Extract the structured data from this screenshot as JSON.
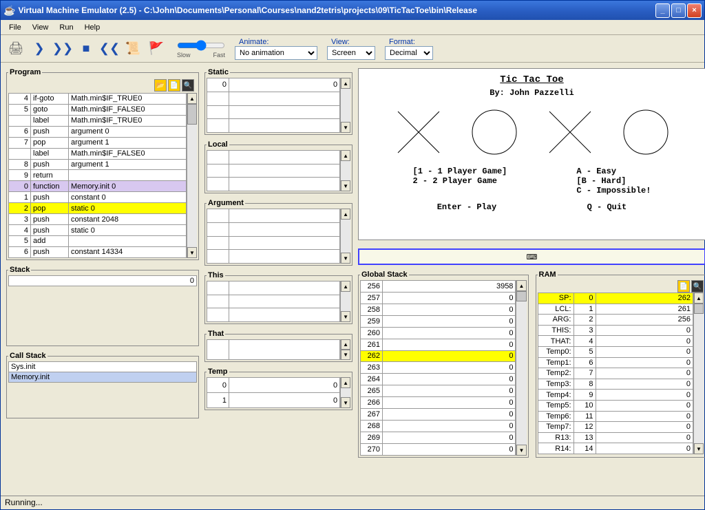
{
  "window": {
    "title": "Virtual Machine Emulator (2.5) - C:\\John\\Documents\\Personal\\Courses\\nand2tetris\\projects\\09\\TicTacToe\\bin\\Release"
  },
  "menubar": {
    "file": "File",
    "view": "View",
    "run": "Run",
    "help": "Help"
  },
  "toolbar": {
    "slow": "Slow",
    "fast": "Fast",
    "animate_label": "Animate:",
    "animate_value": "No animation",
    "view_label": "View:",
    "view_value": "Screen",
    "format_label": "Format:",
    "format_value": "Decimal"
  },
  "program": {
    "label": "Program",
    "rows": [
      {
        "n": "4",
        "cmd": "if-goto",
        "arg": "Math.min$IF_TRUE0"
      },
      {
        "n": "5",
        "cmd": "goto",
        "arg": "Math.min$IF_FALSE0"
      },
      {
        "n": "",
        "cmd": "label",
        "arg": "Math.min$IF_TRUE0"
      },
      {
        "n": "6",
        "cmd": "push",
        "arg": "argument 0"
      },
      {
        "n": "7",
        "cmd": "pop",
        "arg": "argument 1"
      },
      {
        "n": "",
        "cmd": "label",
        "arg": "Math.min$IF_FALSE0"
      },
      {
        "n": "8",
        "cmd": "push",
        "arg": "argument 1"
      },
      {
        "n": "9",
        "cmd": "return",
        "arg": ""
      },
      {
        "n": "0",
        "cmd": "function",
        "arg": "Memory.init 0",
        "hl": "purple"
      },
      {
        "n": "1",
        "cmd": "push",
        "arg": "constant 0"
      },
      {
        "n": "2",
        "cmd": "pop",
        "arg": "static 0",
        "hl": "yellow"
      },
      {
        "n": "3",
        "cmd": "push",
        "arg": "constant 2048"
      },
      {
        "n": "4",
        "cmd": "push",
        "arg": "static 0"
      },
      {
        "n": "5",
        "cmd": "add",
        "arg": ""
      },
      {
        "n": "6",
        "cmd": "push",
        "arg": "constant 14334"
      }
    ]
  },
  "stack": {
    "label": "Stack",
    "rows": [
      {
        "v": "0"
      }
    ]
  },
  "callstack": {
    "label": "Call Stack",
    "rows": [
      {
        "v": "Sys.init"
      },
      {
        "v": "Memory.init",
        "hl": "blue"
      }
    ]
  },
  "static": {
    "label": "Static",
    "rows": [
      {
        "n": "0",
        "v": "0"
      },
      {
        "n": "",
        "v": ""
      },
      {
        "n": "",
        "v": ""
      },
      {
        "n": "",
        "v": ""
      }
    ]
  },
  "local": {
    "label": "Local",
    "rows": [
      {
        "n": "",
        "v": ""
      },
      {
        "n": "",
        "v": ""
      },
      {
        "n": "",
        "v": ""
      }
    ]
  },
  "argument": {
    "label": "Argument",
    "rows": [
      {
        "n": "",
        "v": ""
      },
      {
        "n": "",
        "v": ""
      },
      {
        "n": "",
        "v": ""
      },
      {
        "n": "",
        "v": ""
      }
    ]
  },
  "this": {
    "label": "This",
    "rows": [
      {
        "n": "",
        "v": ""
      },
      {
        "n": "",
        "v": ""
      },
      {
        "n": "",
        "v": ""
      }
    ]
  },
  "that": {
    "label": "That",
    "rows": [
      {
        "n": "",
        "v": ""
      }
    ]
  },
  "temp": {
    "label": "Temp",
    "rows": [
      {
        "n": "0",
        "v": "0"
      },
      {
        "n": "1",
        "v": "0"
      }
    ]
  },
  "screen": {
    "title": "Tic Tac Toe",
    "by": "By: John Pazzelli",
    "opt1a": "[1 - 1 Player Game]",
    "opt1b": "2 - 2 Player Game",
    "opt2a": "A - Easy",
    "opt2b": "[B - Hard]",
    "opt2c": "C - Impossible!",
    "enter": "Enter - Play",
    "quit": "Q - Quit"
  },
  "globalstack": {
    "label": "Global Stack",
    "rows": [
      {
        "n": "256",
        "v": "3958"
      },
      {
        "n": "257",
        "v": "0"
      },
      {
        "n": "258",
        "v": "0"
      },
      {
        "n": "259",
        "v": "0"
      },
      {
        "n": "260",
        "v": "0"
      },
      {
        "n": "261",
        "v": "0"
      },
      {
        "n": "262",
        "v": "0",
        "hl": "yellow"
      },
      {
        "n": "263",
        "v": "0"
      },
      {
        "n": "264",
        "v": "0"
      },
      {
        "n": "265",
        "v": "0"
      },
      {
        "n": "266",
        "v": "0"
      },
      {
        "n": "267",
        "v": "0"
      },
      {
        "n": "268",
        "v": "0"
      },
      {
        "n": "269",
        "v": "0"
      },
      {
        "n": "270",
        "v": "0"
      }
    ]
  },
  "ram": {
    "label": "RAM",
    "rows": [
      {
        "lbl": "SP:",
        "n": "0",
        "v": "262",
        "hl": "yellow"
      },
      {
        "lbl": "LCL:",
        "n": "1",
        "v": "261"
      },
      {
        "lbl": "ARG:",
        "n": "2",
        "v": "256"
      },
      {
        "lbl": "THIS:",
        "n": "3",
        "v": "0"
      },
      {
        "lbl": "THAT:",
        "n": "4",
        "v": "0"
      },
      {
        "lbl": "Temp0:",
        "n": "5",
        "v": "0"
      },
      {
        "lbl": "Temp1:",
        "n": "6",
        "v": "0"
      },
      {
        "lbl": "Temp2:",
        "n": "7",
        "v": "0"
      },
      {
        "lbl": "Temp3:",
        "n": "8",
        "v": "0"
      },
      {
        "lbl": "Temp4:",
        "n": "9",
        "v": "0"
      },
      {
        "lbl": "Temp5:",
        "n": "10",
        "v": "0"
      },
      {
        "lbl": "Temp6:",
        "n": "11",
        "v": "0"
      },
      {
        "lbl": "Temp7:",
        "n": "12",
        "v": "0"
      },
      {
        "lbl": "R13:",
        "n": "13",
        "v": "0"
      },
      {
        "lbl": "R14:",
        "n": "14",
        "v": "0"
      }
    ]
  },
  "status": "Running..."
}
